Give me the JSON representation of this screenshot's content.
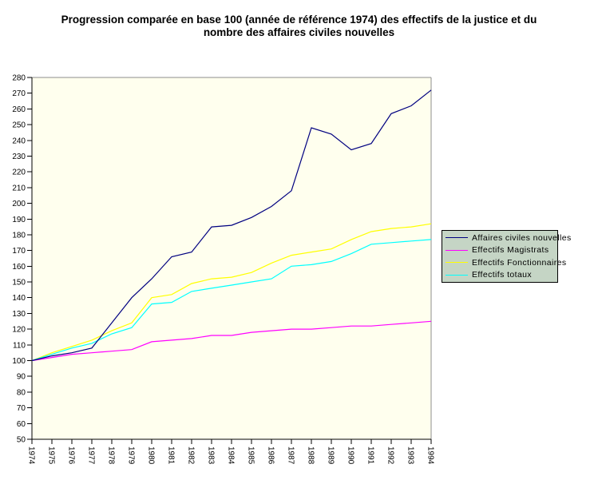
{
  "title": {
    "line1": "Progression comparée en base 100 (année de référence 1974) des effectifs de la justice et du",
    "line2": "nombre des affaires civiles nouvelles"
  },
  "chart_data": {
    "type": "line",
    "title": "Progression comparée en base 100 (année de référence 1974) des effectifs de la justice et du nombre des affaires civiles nouvelles",
    "x": [
      1974,
      1975,
      1976,
      1977,
      1978,
      1979,
      1980,
      1981,
      1982,
      1983,
      1984,
      1985,
      1986,
      1987,
      1988,
      1989,
      1990,
      1991,
      1992,
      1993,
      1994
    ],
    "series": [
      {
        "name": "Affaires civiles nouvelles",
        "color": "#000080",
        "values": [
          100,
          103,
          105,
          108,
          124,
          140,
          152,
          166,
          169,
          185,
          186,
          191,
          198,
          208,
          248,
          244,
          234,
          238,
          257,
          262,
          272
        ]
      },
      {
        "name": "Effectifs Magistrats",
        "color": "#FF00FF",
        "values": [
          100,
          102,
          104,
          105,
          106,
          107,
          112,
          113,
          114,
          116,
          116,
          118,
          119,
          120,
          120,
          121,
          122,
          122,
          123,
          124,
          125
        ]
      },
      {
        "name": "Effectifs Fonctionnaires",
        "color": "#FFFF00",
        "values": [
          100,
          105,
          109,
          113,
          119,
          124,
          140,
          142,
          149,
          152,
          153,
          156,
          162,
          167,
          169,
          171,
          177,
          182,
          184,
          185,
          187
        ]
      },
      {
        "name": "Effectifs totaux",
        "color": "#00FFFF",
        "values": [
          100,
          104,
          108,
          111,
          117,
          121,
          136,
          137,
          144,
          146,
          148,
          150,
          152,
          160,
          161,
          163,
          168,
          174,
          175,
          176,
          177
        ]
      }
    ],
    "xlabel": "",
    "ylabel": "",
    "ylim": [
      50,
      280
    ],
    "ytick_step": 10,
    "xtick_labels": [
      "1974",
      "1975",
      "1976",
      "1977",
      "1978",
      "1979",
      "1980",
      "1981",
      "1982",
      "1983",
      "1984",
      "1985",
      "1986",
      "1987",
      "1988",
      "1989",
      "1990",
      "1991",
      "1992",
      "1993",
      "1994"
    ],
    "grid": false,
    "legend_position": "right",
    "colors": {
      "plot_background": "#FFFFEE",
      "outer_background": "#FFFFFF",
      "axis": "#000000",
      "plot_border": "#8C8C8C",
      "legend_background": "#C5D5C5",
      "legend_border": "#000000",
      "text": "#000000"
    }
  }
}
